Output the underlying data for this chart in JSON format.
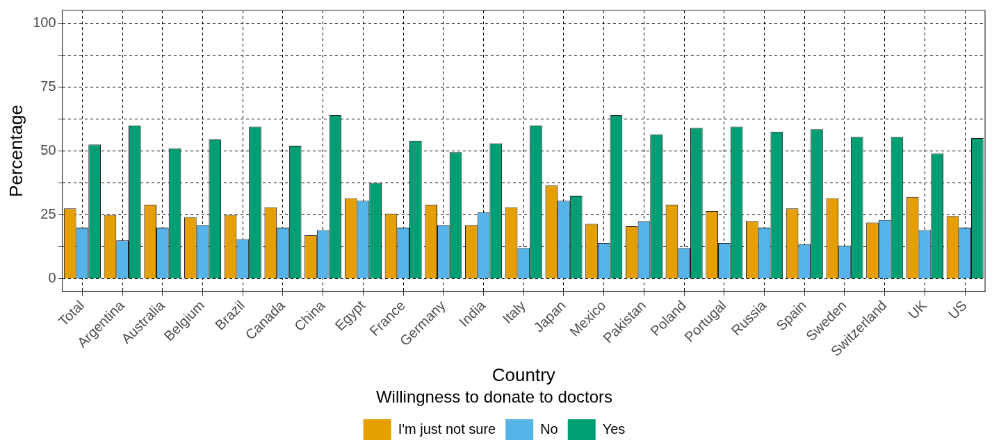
{
  "chart_data": {
    "type": "bar",
    "xlabel": "Country",
    "ylabel": "Percentage",
    "legend_title": "Willingness to donate to doctors",
    "categories": [
      "Total",
      "Argentina",
      "Australia",
      "Belgium",
      "Brazil",
      "Canada",
      "China",
      "Egypt",
      "France",
      "Germany",
      "India",
      "Italy",
      "Japan",
      "Mexico",
      "Pakistan",
      "Poland",
      "Portugal",
      "Russia",
      "Spain",
      "Sweden",
      "Switzerland",
      "UK",
      "US"
    ],
    "series": [
      {
        "name": "I'm just not sure",
        "color": "#e69f00",
        "values": [
          27.5,
          25,
          29,
          24,
          25,
          28,
          17,
          31.5,
          25.5,
          29,
          21,
          28,
          36.5,
          21.5,
          20.5,
          29,
          26.5,
          22.5,
          27.5,
          31.5,
          22,
          32,
          24.5
        ]
      },
      {
        "name": "No",
        "color": "#56b4e9",
        "values": [
          20,
          15,
          20,
          21,
          15.5,
          20,
          19,
          30.5,
          20,
          21,
          26,
          12,
          30.5,
          14,
          22.5,
          12,
          14,
          20,
          13.5,
          13,
          23,
          19,
          20
        ]
      },
      {
        "name": "Yes",
        "color": "#009e73",
        "values": [
          52.5,
          60,
          51,
          54.5,
          59.5,
          52,
          64,
          37.5,
          54,
          49.5,
          53,
          60,
          32.5,
          64,
          56.5,
          59,
          59.5,
          57.5,
          58.5,
          55.5,
          55.5,
          49,
          55
        ]
      }
    ],
    "ylim": [
      -5,
      105
    ],
    "yticks": [
      0,
      {
        "value": 12.5,
        "label": null
      },
      25,
      {
        "value": 37.5,
        "label": null
      },
      50,
      {
        "value": 62.5,
        "label": null
      },
      75,
      {
        "value": 87.5,
        "label": null
      },
      100
    ],
    "grid": true,
    "legend": "bottom"
  }
}
